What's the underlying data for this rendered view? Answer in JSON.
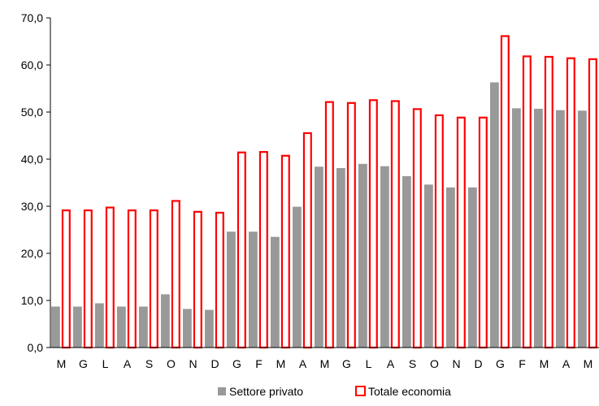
{
  "chart_data": {
    "type": "bar",
    "categories": [
      "M",
      "G",
      "L",
      "A",
      "S",
      "O",
      "N",
      "D",
      "G",
      "F",
      "M",
      "A",
      "M",
      "G",
      "L",
      "A",
      "S",
      "O",
      "N",
      "D",
      "G",
      "F",
      "M",
      "A",
      "M"
    ],
    "series": [
      {
        "name": "Settore privato",
        "color": "#999999",
        "style": "filled",
        "values": [
          8.7,
          8.7,
          9.4,
          8.7,
          8.7,
          11.3,
          8.2,
          8.0,
          24.6,
          24.6,
          23.5,
          29.9,
          38.4,
          38.1,
          39.0,
          38.5,
          36.4,
          34.6,
          34.0,
          34.0,
          56.3,
          50.8,
          50.7,
          50.4,
          50.3
        ]
      },
      {
        "name": "Totale economia",
        "color": "#ff0000",
        "style": "outline",
        "values": [
          29.3,
          29.3,
          29.9,
          29.3,
          29.3,
          31.3,
          29.0,
          28.8,
          41.6,
          41.7,
          40.9,
          45.7,
          52.3,
          52.1,
          52.7,
          52.5,
          50.8,
          49.5,
          49.0,
          49.0,
          66.3,
          62.0,
          61.9,
          61.6,
          61.4
        ]
      }
    ],
    "y_ticks": [
      "0,0",
      "10,0",
      "20,0",
      "30,0",
      "40,0",
      "50,0",
      "60,0",
      "70,0"
    ],
    "ylim": [
      0,
      70
    ],
    "legend_position": "bottom-center",
    "grid": false,
    "title": "",
    "xlabel": "",
    "ylabel": ""
  }
}
